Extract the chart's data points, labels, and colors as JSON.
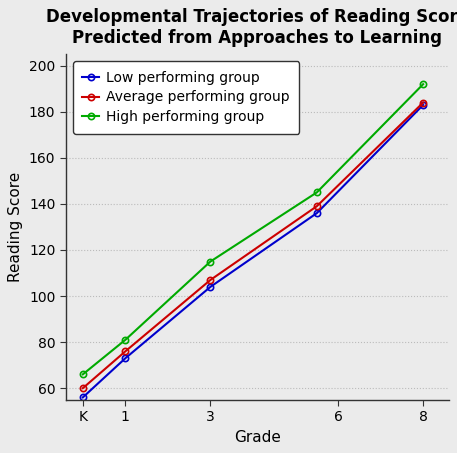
{
  "title": "Developmental Trajectories of Reading Score\nPredicted from Approaches to Learning",
  "xlabel": "Grade",
  "ylabel": "Reading Score",
  "x_positions": [
    0,
    1,
    3,
    5.5,
    8
  ],
  "x_tick_pos": [
    0,
    1,
    3,
    6,
    8
  ],
  "x_tick_labels": [
    "K",
    "1",
    "3",
    "6",
    "8"
  ],
  "ylim": [
    55,
    205
  ],
  "yticks": [
    60,
    80,
    100,
    120,
    140,
    160,
    180,
    200
  ],
  "groups": [
    {
      "label": "Low performing group",
      "color": "#0000CC",
      "values": [
        56,
        73,
        104,
        136,
        183
      ]
    },
    {
      "label": "Average performing group",
      "color": "#CC0000",
      "values": [
        60,
        76,
        107,
        139,
        184
      ]
    },
    {
      "label": "High performing group",
      "color": "#00AA00",
      "values": [
        66,
        81,
        115,
        145,
        192
      ]
    }
  ],
  "background_color": "#EBEBEB",
  "plot_bg_color": "#EBEBEB",
  "grid_color": "#BBBBBB",
  "title_fontsize": 12,
  "axis_label_fontsize": 11,
  "tick_fontsize": 10,
  "legend_fontsize": 10
}
